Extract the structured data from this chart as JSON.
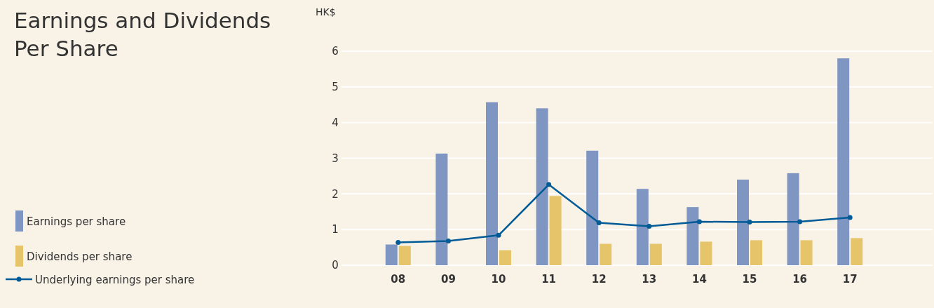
{
  "chart_data": {
    "type": "bar",
    "title": "Earnings and Dividends Per Share",
    "ylabel": "HK$",
    "categories": [
      "08",
      "09",
      "10",
      "11",
      "12",
      "13",
      "14",
      "15",
      "16",
      "17"
    ],
    "series": [
      {
        "name": "Earnings per share",
        "color": "#7f96c2",
        "values": [
          0.58,
          3.13,
          4.57,
          4.4,
          3.21,
          2.14,
          1.63,
          2.4,
          2.58,
          5.8
        ]
      },
      {
        "name": "Dividends per share",
        "color": "#e6c46a",
        "values": [
          0.54,
          null,
          0.42,
          1.94,
          0.6,
          0.6,
          0.66,
          0.7,
          0.7,
          0.76
        ]
      },
      {
        "name": "Underlying earnings per share",
        "type": "line",
        "color": "#005b96",
        "marker": "circle",
        "values": [
          0.64,
          0.68,
          0.84,
          2.26,
          1.19,
          1.09,
          1.22,
          1.21,
          1.22,
          1.34
        ]
      }
    ],
    "ylim": [
      0,
      6
    ],
    "yticks": [
      0,
      1,
      2,
      3,
      4,
      5,
      6
    ],
    "grid": "y",
    "legend": "bottom left"
  }
}
